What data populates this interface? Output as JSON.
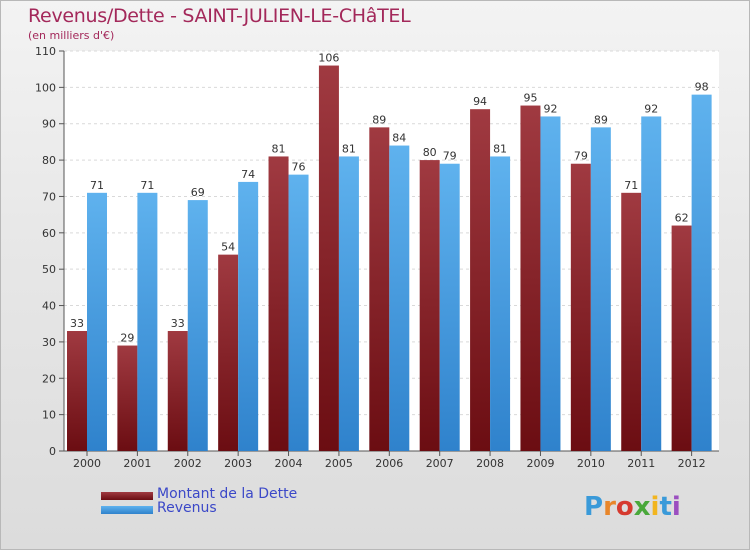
{
  "title": "Revenus/Dette - SAINT-JULIEN-LE-CHâTEL",
  "subtitle": "(en milliers d'€)",
  "colors": {
    "dette": "#6b0d12",
    "dette_light": "#a03a41",
    "revenus": "#2f82cc",
    "revenus_light": "#5fb2ee",
    "title": "#a3285a",
    "legend_text": "#3b48c8"
  },
  "legend": {
    "dette_label": "Montant de la Dette",
    "revenus_label": "Revenus"
  },
  "logo_text": "Proxiti",
  "chart_data": {
    "type": "bar",
    "categories": [
      "2000",
      "2001",
      "2002",
      "2003",
      "2004",
      "2005",
      "2006",
      "2007",
      "2008",
      "2009",
      "2010",
      "2011",
      "2012"
    ],
    "series": [
      {
        "name": "Montant de la Dette",
        "values": [
          33,
          29,
          33,
          54,
          81,
          106,
          89,
          80,
          94,
          95,
          79,
          71,
          62
        ]
      },
      {
        "name": "Revenus",
        "values": [
          71,
          71,
          69,
          74,
          76,
          81,
          84,
          79,
          81,
          92,
          89,
          92,
          98
        ]
      }
    ],
    "y_ticks": [
      0,
      10,
      20,
      30,
      40,
      50,
      60,
      70,
      80,
      90,
      100,
      110
    ],
    "ylim": [
      0,
      110
    ],
    "grid": true,
    "legend_position": "bottom-left"
  }
}
